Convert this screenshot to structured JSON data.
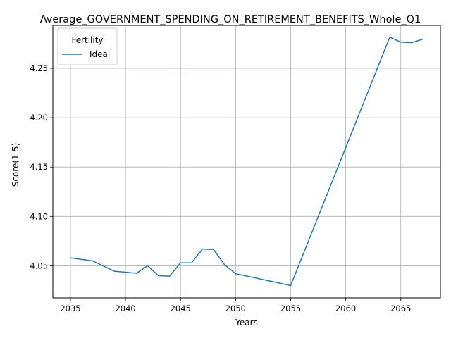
{
  "chart_data": {
    "type": "line",
    "title": "Average_GOVERNMENT_SPENDING_ON_RETIREMENT_BENEFITS_Whole_Q1",
    "xlabel": "Years",
    "ylabel": "Score(1-5)",
    "xlim": [
      2033.4,
      2068.6
    ],
    "ylim": [
      4.0175,
      4.2935
    ],
    "xticks": [
      "2035",
      "2040",
      "2045",
      "2050",
      "2055",
      "2060",
      "2065"
    ],
    "yticks": [
      "4.05",
      "4.10",
      "4.15",
      "4.20",
      "4.25"
    ],
    "grid": true,
    "legend": {
      "title": "Fertility",
      "placement": "top-left"
    },
    "series": [
      {
        "name": "Ideal",
        "color": "#1f77b4",
        "x": [
          2035,
          2037,
          2039,
          2041,
          2042,
          2043,
          2044,
          2045,
          2046,
          2047,
          2048,
          2049,
          2050,
          2055,
          2064,
          2065,
          2066,
          2067
        ],
        "y": [
          4.058,
          4.055,
          4.0445,
          4.0425,
          4.05,
          4.04,
          4.0395,
          4.053,
          4.053,
          4.067,
          4.0665,
          4.051,
          4.042,
          4.03,
          4.2815,
          4.2765,
          4.276,
          4.2795
        ]
      }
    ]
  }
}
